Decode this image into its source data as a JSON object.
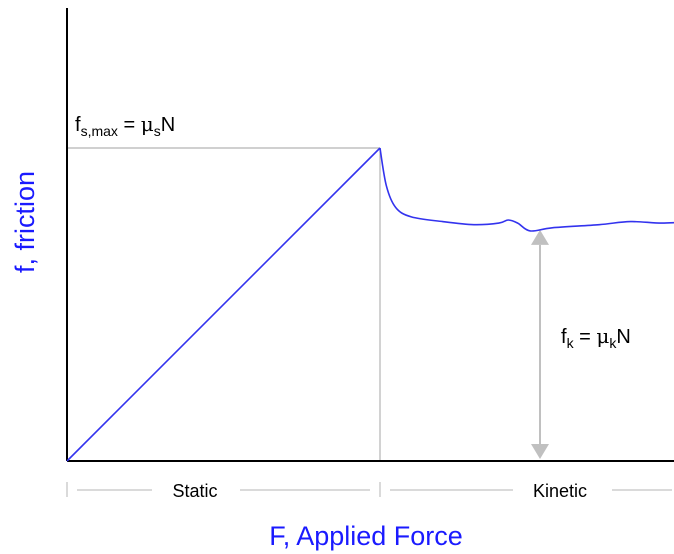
{
  "chart_data": {
    "type": "line",
    "title": "",
    "xlabel": "F,  Applied Force",
    "ylabel": "f,  friction",
    "grid": false,
    "legend": "none",
    "x_axis_ticks": false,
    "y_axis_ticks": false,
    "series": [
      {
        "static_segment": [
          [
            0,
            0
          ],
          [
            1,
            1
          ]
        ],
        "kinetic_segment": [
          [
            1.0,
            1.0
          ],
          [
            1.02,
            0.88
          ],
          [
            1.05,
            0.81
          ],
          [
            1.1,
            0.78
          ],
          [
            1.2,
            0.765
          ],
          [
            1.3,
            0.755
          ],
          [
            1.38,
            0.76
          ],
          [
            1.41,
            0.77
          ],
          [
            1.44,
            0.76
          ],
          [
            1.48,
            0.735
          ],
          [
            1.55,
            0.745
          ],
          [
            1.7,
            0.755
          ],
          [
            1.8,
            0.765
          ],
          [
            1.9,
            0.76
          ],
          [
            2.0,
            0.765
          ]
        ]
      }
    ],
    "annotations": {
      "fs_max": {
        "prefix": "f",
        "subscript": "s,max",
        "equals": " = ",
        "mu": "μ",
        "mu_subscript": "s",
        "suffix": "N",
        "value": 1.0
      },
      "fk": {
        "prefix": "f",
        "subscript": "k",
        "equals": " = ",
        "mu": "μ",
        "mu_subscript": "k",
        "suffix": "N",
        "value": 0.745
      }
    },
    "regions": [
      {
        "label": "Static",
        "from": 0,
        "to": 1
      },
      {
        "label": "Kinetic",
        "from": 1,
        "to": 2
      }
    ],
    "colors": {
      "curve": "#3333ee",
      "label_blue": "#1a1aff",
      "guide": "#b5b5b5",
      "arrow": "#c0c0c0",
      "axis": "#000000",
      "text": "#000000"
    }
  }
}
